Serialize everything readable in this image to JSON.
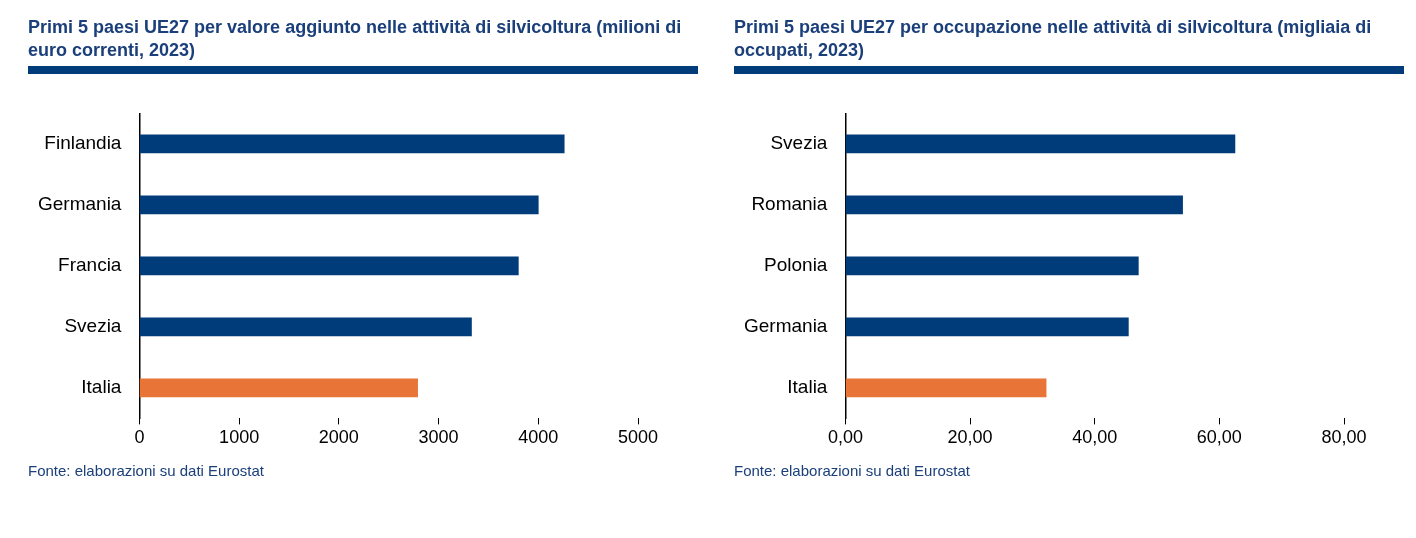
{
  "chart_data": [
    {
      "type": "bar",
      "orientation": "horizontal",
      "title": "Primi 5 paesi UE27 per valore aggiunto nelle attività di silvicoltura (milioni di euro correnti, 2023)",
      "categories": [
        "Finlandia",
        "Germania",
        "Francia",
        "Svezia",
        "Italia"
      ],
      "values": [
        4260,
        4000,
        3800,
        3330,
        2790
      ],
      "colors": [
        "#003b7a",
        "#003b7a",
        "#003b7a",
        "#003b7a",
        "#e87537"
      ],
      "xlim": [
        0,
        5000
      ],
      "xticks": [
        0,
        1000,
        2000,
        3000,
        4000,
        5000
      ],
      "annotations": [
        "Fonte: elaborazioni su dati Eurostat"
      ]
    },
    {
      "type": "bar",
      "orientation": "horizontal",
      "title": "Primi 5 paesi UE27 per occupazione nelle attività di silvicoltura (migliaia di occupati, 2023)",
      "categories": [
        "Svezia",
        "Romania",
        "Polonia",
        "Germania",
        "Italia"
      ],
      "values": [
        62.5,
        54.1,
        47.0,
        45.4,
        32.2
      ],
      "colors": [
        "#003b7a",
        "#003b7a",
        "#003b7a",
        "#003b7a",
        "#e87537"
      ],
      "xlim": [
        0,
        80
      ],
      "xticks": [
        {
          "value": 0,
          "label": "0,00"
        },
        {
          "value": 20,
          "label": "20,00"
        },
        {
          "value": 40,
          "label": "40,00"
        },
        {
          "value": 60,
          "label": "60,00"
        },
        {
          "value": 80,
          "label": "80,00"
        }
      ],
      "annotations": [
        "Fonte: elaborazioni su dati Eurostat"
      ]
    }
  ]
}
